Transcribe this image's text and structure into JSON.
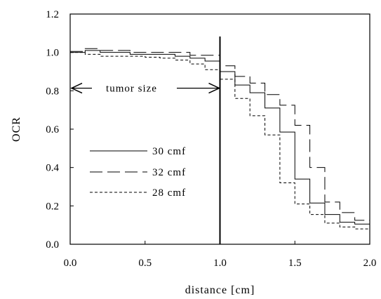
{
  "chart_data": {
    "type": "line",
    "line_style": "step",
    "title": "",
    "xlabel": "distance [cm]",
    "ylabel": "OCR",
    "xlim": [
      0.0,
      2.0
    ],
    "ylim": [
      0.0,
      1.2
    ],
    "xticks": [
      "0.0",
      "0.5",
      "1.0",
      "1.5",
      "2.0"
    ],
    "yticks": [
      "0.0",
      "0.2",
      "0.4",
      "0.6",
      "0.8",
      "1.0",
      "1.2"
    ],
    "grid": false,
    "legend_position": "center-left",
    "bin_edges": [
      0.0,
      0.1,
      0.2,
      0.3,
      0.4,
      0.5,
      0.6,
      0.7,
      0.8,
      0.9,
      1.0,
      1.1,
      1.2,
      1.3,
      1.4,
      1.5,
      1.6,
      1.7,
      1.8,
      1.9,
      2.0
    ],
    "series": [
      {
        "name": "30 cmf",
        "dash": "solid",
        "values": [
          1.0,
          1.01,
          1.0,
          1.0,
          0.99,
          0.99,
          0.99,
          0.98,
          0.97,
          0.955,
          0.9,
          0.83,
          0.79,
          0.71,
          0.585,
          0.34,
          0.215,
          0.155,
          0.115,
          0.105
        ]
      },
      {
        "name": "32 cmf",
        "dash": "long-dash",
        "values": [
          1.005,
          1.02,
          1.01,
          1.01,
          1.0,
          1.0,
          1.0,
          1.0,
          0.985,
          0.985,
          0.93,
          0.875,
          0.84,
          0.78,
          0.725,
          0.62,
          0.4,
          0.22,
          0.165,
          0.125
        ]
      },
      {
        "name": "28 cmf",
        "dash": "short-dash",
        "values": [
          1.0,
          0.99,
          0.98,
          0.98,
          0.98,
          0.975,
          0.97,
          0.96,
          0.94,
          0.91,
          0.86,
          0.76,
          0.67,
          0.57,
          0.32,
          0.21,
          0.155,
          0.11,
          0.09,
          0.08
        ]
      }
    ],
    "vertical_line_x": 1.0,
    "annotation": {
      "text": "tumor size",
      "x_from": 0.0,
      "x_to": 1.0,
      "y": 0.81
    }
  }
}
